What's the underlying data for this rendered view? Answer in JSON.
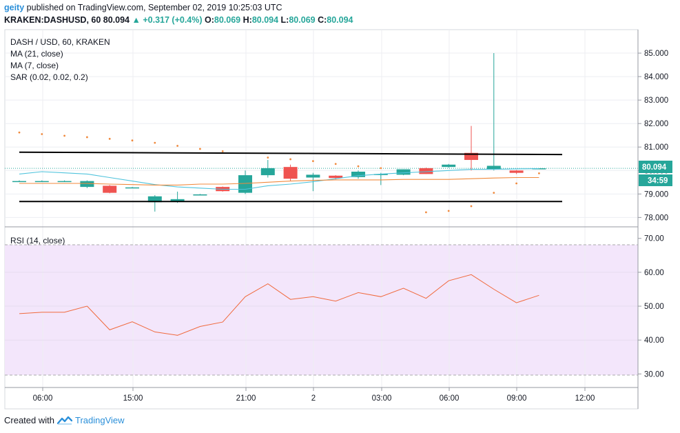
{
  "header": {
    "user": "geity",
    "published_text": "published on TradingView.com, September 02, 2019 10:25:03 UTC",
    "symbol": "KRAKEN:DASHUSD, 60",
    "last": "80.094",
    "change": "+0.317 (+0.4%)",
    "open_label": "O:",
    "open": "80.069",
    "high_label": "H:",
    "high": "80.094",
    "low_label": "L:",
    "low": "80.069",
    "close_label": "C:",
    "close": "80.094"
  },
  "legend": {
    "title": "DASH / USD, 60, KRAKEN",
    "ma21": "MA (21, close)",
    "ma7": "MA (7, close)",
    "sar": "SAR (0.02, 0.02, 0.2)",
    "rsi": "RSI (14, close)"
  },
  "price_tag": {
    "value": "80.094",
    "countdown": "34:59"
  },
  "footer": {
    "created_with": "Created with",
    "brand": "TradingView"
  },
  "colors": {
    "up": "#26a69a",
    "down": "#ef5350",
    "ma21": "#4fc3dc",
    "ma7": "#f0893c",
    "sar": "#f0893c",
    "rsi": "#f0693c",
    "rsi_band": "#f3e6fb",
    "channel": "#000000"
  },
  "chart_data": [
    {
      "type": "candlestick",
      "symbol": "DASH / USD, 60, KRAKEN",
      "y_ticks": [
        "85.000",
        "84.000",
        "83.000",
        "82.000",
        "81.000",
        "80.000",
        "79.000",
        "78.000"
      ],
      "ylim": [
        77.6,
        86.0
      ],
      "x_ticks": [
        "06:00",
        "15:00",
        "21:00",
        "2",
        "03:00",
        "06:00",
        "09:00",
        "12:00"
      ],
      "candles": [
        {
          "o": 79.55,
          "h": 79.58,
          "l": 79.52,
          "c": 79.55
        },
        {
          "o": 79.55,
          "h": 79.58,
          "l": 79.52,
          "c": 79.55
        },
        {
          "o": 79.55,
          "h": 79.58,
          "l": 79.52,
          "c": 79.55
        },
        {
          "o": 79.3,
          "h": 79.58,
          "l": 79.25,
          "c": 79.55
        },
        {
          "o": 79.35,
          "h": 79.38,
          "l": 79.03,
          "c": 79.05
        },
        {
          "o": 79.28,
          "h": 79.3,
          "l": 79.26,
          "c": 79.28
        },
        {
          "o": 78.65,
          "h": 78.95,
          "l": 78.25,
          "c": 78.9
        },
        {
          "o": 78.68,
          "h": 79.1,
          "l": 78.62,
          "c": 78.78
        },
        {
          "o": 78.98,
          "h": 79.0,
          "l": 78.96,
          "c": 78.98
        },
        {
          "o": 79.3,
          "h": 79.32,
          "l": 79.1,
          "c": 79.12
        },
        {
          "o": 79.05,
          "h": 80.0,
          "l": 79.0,
          "c": 79.8
        },
        {
          "o": 79.8,
          "h": 80.45,
          "l": 79.7,
          "c": 80.1
        },
        {
          "o": 80.15,
          "h": 80.25,
          "l": 79.55,
          "c": 79.65
        },
        {
          "o": 79.7,
          "h": 79.9,
          "l": 79.12,
          "c": 79.82
        },
        {
          "o": 79.78,
          "h": 79.8,
          "l": 79.62,
          "c": 79.68
        },
        {
          "o": 79.72,
          "h": 80.0,
          "l": 79.65,
          "c": 79.95
        },
        {
          "o": 79.82,
          "h": 79.9,
          "l": 79.38,
          "c": 79.85
        },
        {
          "o": 79.82,
          "h": 80.05,
          "l": 79.8,
          "c": 80.05
        },
        {
          "o": 80.1,
          "h": 80.12,
          "l": 79.85,
          "c": 79.85
        },
        {
          "o": 80.15,
          "h": 80.28,
          "l": 80.12,
          "c": 80.25
        },
        {
          "o": 80.75,
          "h": 81.9,
          "l": 80.0,
          "c": 80.45
        },
        {
          "o": 80.05,
          "h": 85.0,
          "l": 80.0,
          "c": 80.2
        },
        {
          "o": 80.0,
          "h": 80.02,
          "l": 79.85,
          "c": 79.9
        },
        {
          "o": 80.069,
          "h": 80.094,
          "l": 80.069,
          "c": 80.094
        }
      ],
      "ma21": [
        79.85,
        79.95,
        79.9,
        79.85,
        79.7,
        79.55,
        79.4,
        79.3,
        79.25,
        79.2,
        79.2,
        79.35,
        79.42,
        79.52,
        79.65,
        79.78,
        79.85,
        79.9,
        79.95,
        80.0,
        80.05,
        80.05,
        80.07,
        80.08
      ],
      "ma7": [
        79.45,
        79.45,
        79.45,
        79.45,
        79.42,
        79.4,
        79.38,
        79.38,
        79.42,
        79.42,
        79.45,
        79.5,
        79.55,
        79.58,
        79.6,
        79.6,
        79.6,
        79.62,
        79.62,
        79.62,
        79.65,
        79.68,
        79.7,
        79.7
      ],
      "sar": [
        81.62,
        81.55,
        81.48,
        81.42,
        81.35,
        81.28,
        81.18,
        81.05,
        80.92,
        80.82,
        null,
        80.55,
        80.48,
        80.4,
        80.28,
        80.18,
        80.1,
        null,
        78.22,
        78.28,
        78.48,
        79.05,
        79.45,
        79.88
      ],
      "channel_upper": {
        "start": 80.78,
        "end": 80.68
      },
      "channel_lower": {
        "start": 78.68,
        "end": 78.68
      },
      "last_price": 80.094
    },
    {
      "type": "line",
      "title": "RSI (14, close)",
      "y_ticks": [
        "70.00",
        "60.00",
        "50.00",
        "40.00",
        "30.00"
      ],
      "ylim": [
        26,
        73
      ],
      "band": [
        30,
        70
      ],
      "values": [
        47.8,
        48.2,
        48.2,
        50.0,
        43.0,
        45.4,
        42.4,
        41.4,
        44.0,
        45.3,
        52.8,
        56.6,
        52.0,
        52.8,
        51.5,
        54.0,
        52.8,
        55.3,
        52.3,
        57.5,
        59.3,
        55.0,
        51.0,
        53.2
      ]
    }
  ]
}
